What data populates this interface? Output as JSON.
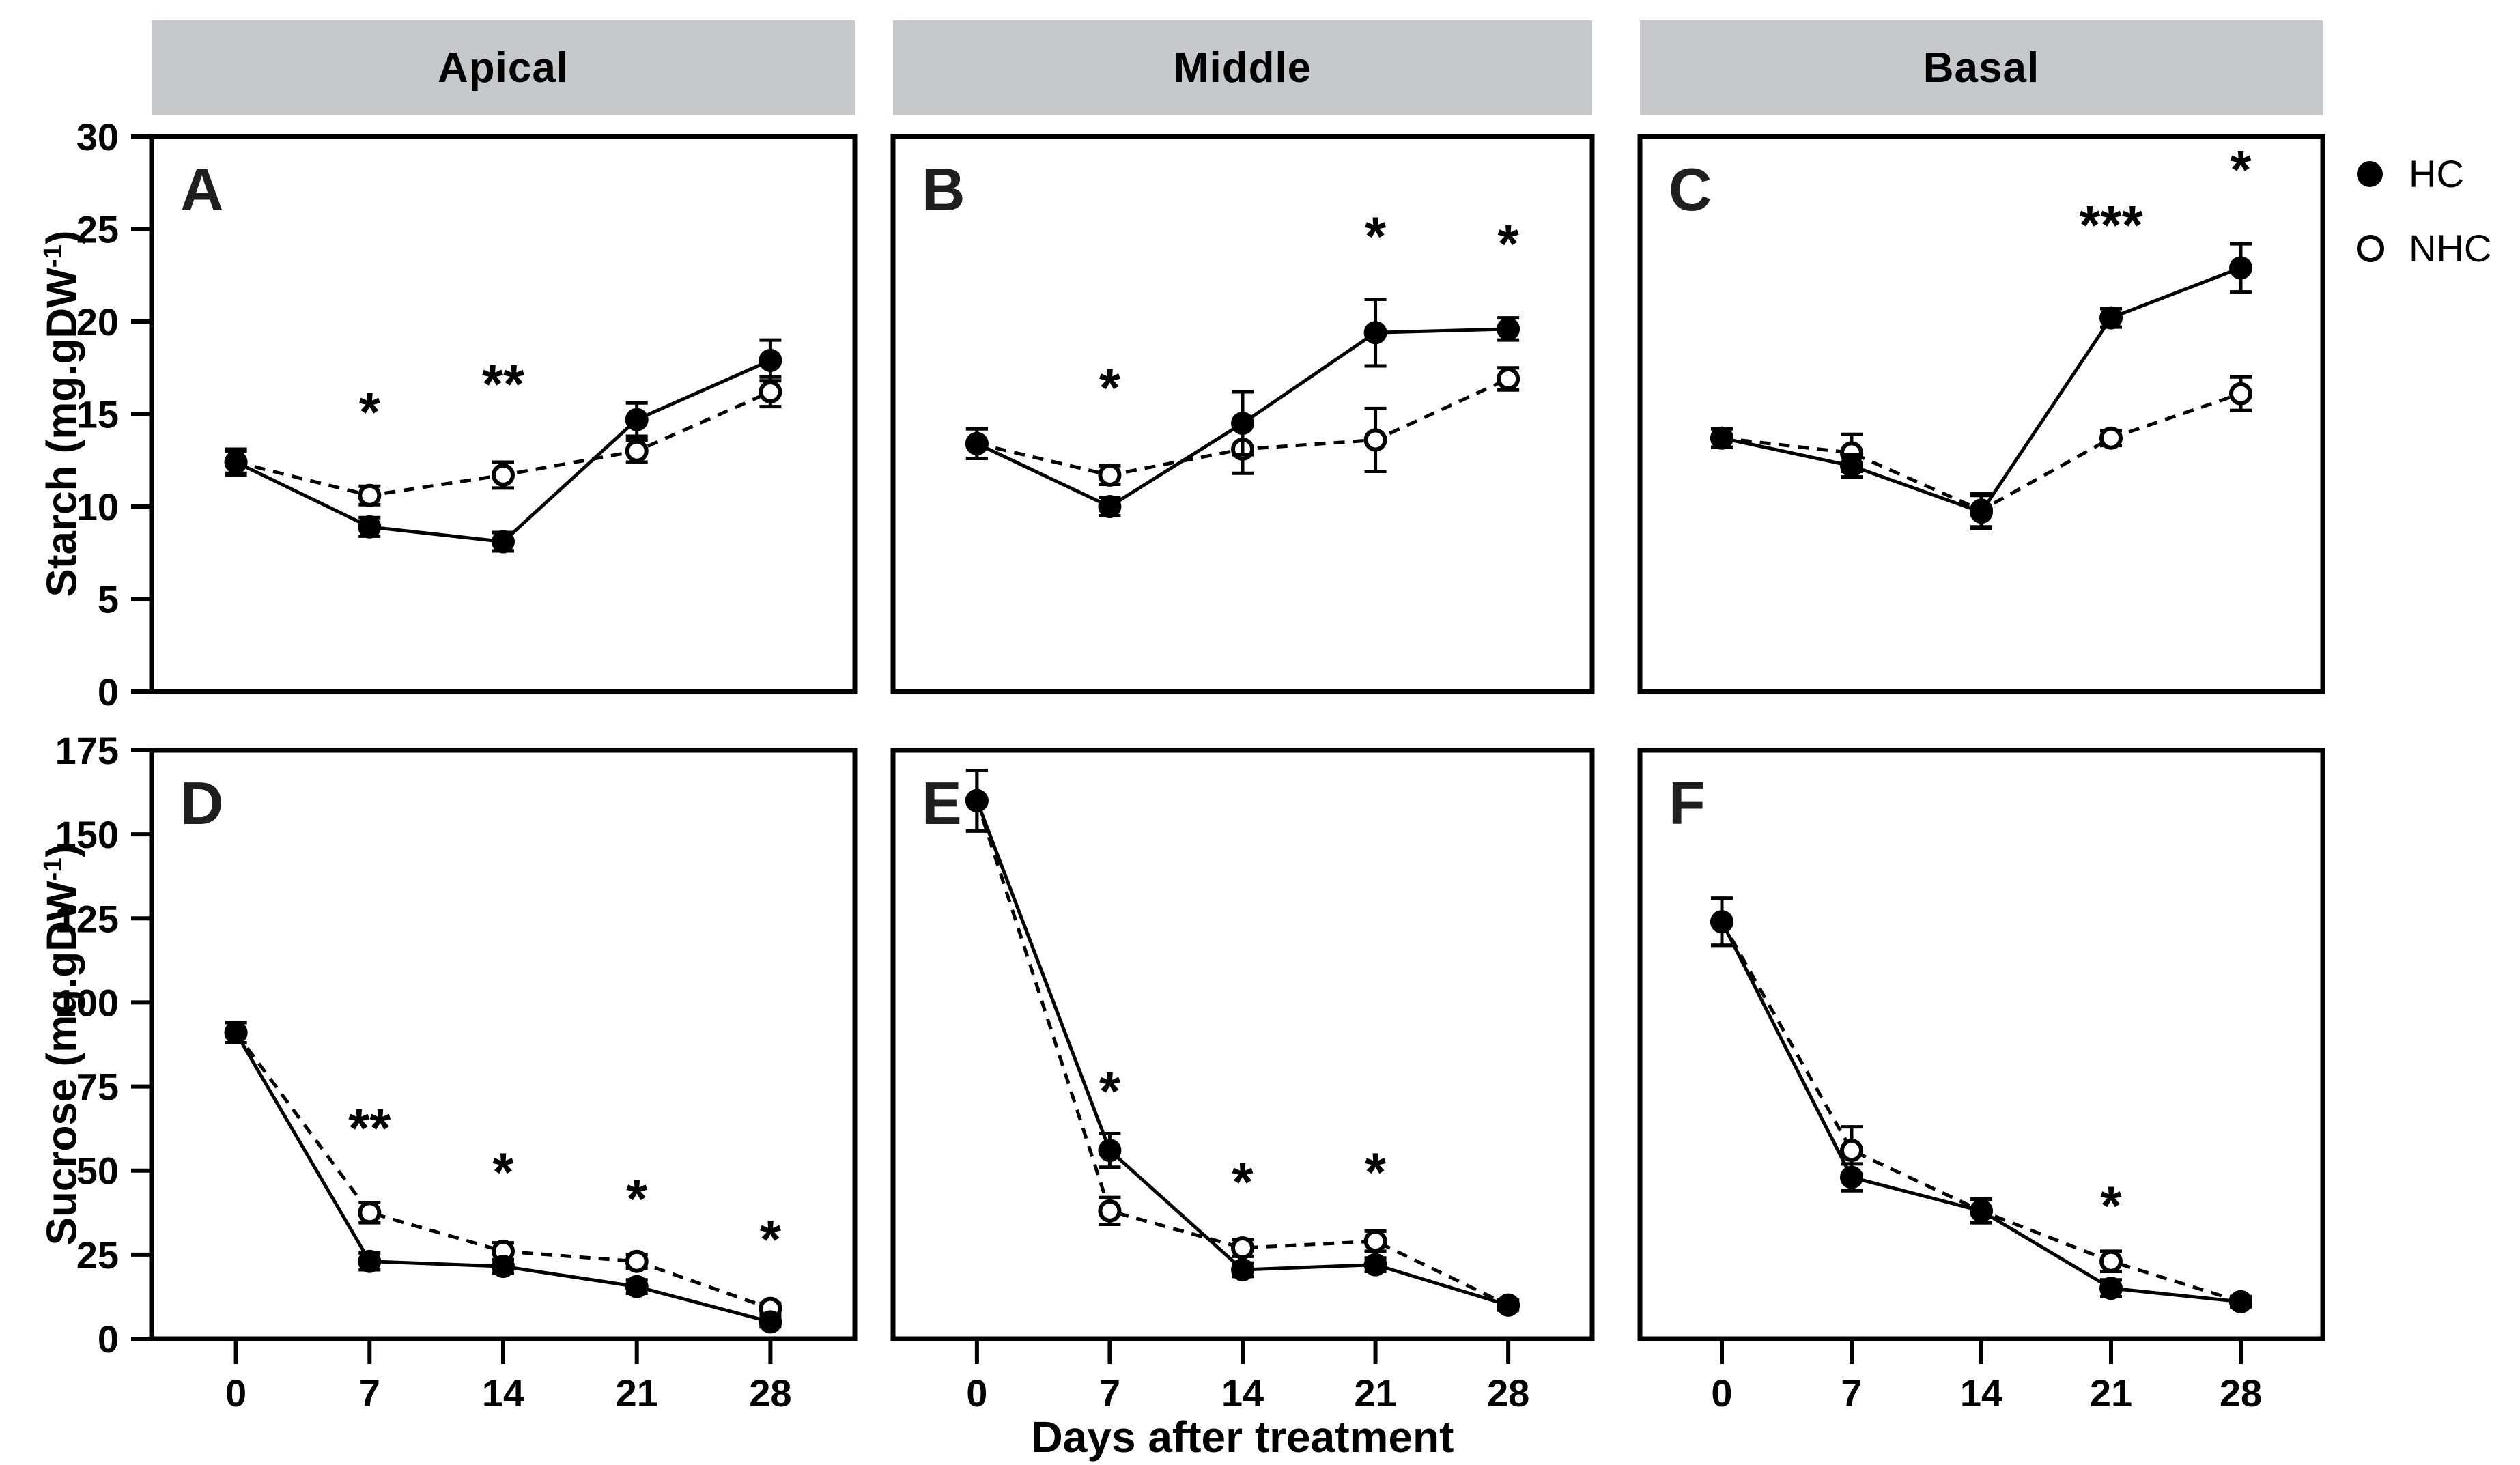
{
  "colors": {
    "background": "#ffffff",
    "ink": "#000000",
    "header_bg": "#c5c9cc",
    "panel_letter": "#1f1f1f"
  },
  "chart_data": {
    "type": "line",
    "xlabel": "Days after treatment",
    "x": [
      0,
      7,
      14,
      21,
      28
    ],
    "x_tick_labels": [
      "0",
      "7",
      "14",
      "21",
      "28"
    ],
    "column_headers": [
      "Apical",
      "Middle",
      "Basal"
    ],
    "rows": [
      {
        "ylabel_prefix": "Starch (mg.gDW",
        "ylabel_sup": "-1",
        "ylabel_suffix": ")",
        "ylim": [
          0,
          30
        ],
        "yticks": [
          0,
          5,
          10,
          15,
          20,
          25,
          30
        ]
      },
      {
        "ylabel_prefix": "Sucrose (mg.gDW",
        "ylabel_sup": "-1",
        "ylabel_suffix": ")",
        "ylim": [
          0,
          175
        ],
        "yticks": [
          0,
          25,
          50,
          75,
          100,
          125,
          150,
          175
        ]
      }
    ],
    "legend": [
      {
        "label": "HC",
        "marker": "filled-circle",
        "line": "solid"
      },
      {
        "label": "NHC",
        "marker": "open-circle",
        "line": "dashed"
      }
    ],
    "panels": [
      {
        "letter": "A",
        "column": "Apical",
        "measure": "Starch",
        "col": 0,
        "row": 0,
        "series": [
          {
            "name": "HC",
            "marker": "filled-circle",
            "line": "solid",
            "values": [
              12.4,
              8.9,
              8.1,
              14.7,
              17.9
            ],
            "errors": [
              0.7,
              0.5,
              0.5,
              0.9,
              1.1
            ]
          },
          {
            "name": "NHC",
            "marker": "open-circle",
            "line": "dashed",
            "values": [
              12.4,
              10.6,
              11.7,
              13.0,
              16.2
            ],
            "errors": [
              0.6,
              0.5,
              0.7,
              0.6,
              0.8
            ]
          }
        ],
        "significance": [
          {
            "day": 7,
            "label": "*",
            "y": 14.1
          },
          {
            "day": 14,
            "label": "**",
            "y": 15.6
          }
        ]
      },
      {
        "letter": "B",
        "column": "Middle",
        "measure": "Starch",
        "col": 1,
        "row": 0,
        "series": [
          {
            "name": "HC",
            "marker": "filled-circle",
            "line": "solid",
            "values": [
              13.4,
              10.0,
              14.5,
              19.4,
              19.6
            ],
            "errors": [
              0.8,
              0.5,
              1.7,
              1.8,
              0.6
            ]
          },
          {
            "name": "NHC",
            "marker": "open-circle",
            "line": "dashed",
            "values": [
              13.4,
              11.7,
              13.1,
              13.6,
              16.9
            ],
            "errors": [
              0.8,
              0.5,
              1.3,
              1.7,
              0.6
            ]
          }
        ],
        "significance": [
          {
            "day": 7,
            "label": "*",
            "y": 15.4
          },
          {
            "day": 21,
            "label": "*",
            "y": 23.6
          },
          {
            "day": 28,
            "label": "*",
            "y": 23.2
          }
        ]
      },
      {
        "letter": "C",
        "column": "Basal",
        "measure": "Starch",
        "col": 2,
        "row": 0,
        "series": [
          {
            "name": "HC",
            "marker": "filled-circle",
            "line": "solid",
            "values": [
              13.7,
              12.2,
              9.7,
              20.2,
              22.9
            ],
            "errors": [
              0.5,
              0.6,
              0.9,
              0.5,
              1.3
            ]
          },
          {
            "name": "NHC",
            "marker": "open-circle",
            "line": "dashed",
            "values": [
              13.7,
              12.9,
              9.8,
              13.7,
              16.1
            ],
            "errors": [
              0.5,
              1.0,
              0.9,
              0.4,
              0.9
            ]
          }
        ],
        "significance": [
          {
            "day": 21,
            "label": "***",
            "y": 24.2
          },
          {
            "day": 28,
            "label": "*",
            "y": 27.2
          }
        ]
      },
      {
        "letter": "D",
        "column": "Apical",
        "measure": "Sucrose",
        "col": 0,
        "row": 1,
        "series": [
          {
            "name": "HC",
            "marker": "filled-circle",
            "line": "solid",
            "values": [
              91,
              23,
              21.5,
              15.5,
              5
            ],
            "errors": [
              3,
              2.5,
              2,
              2,
              1.5
            ]
          },
          {
            "name": "NHC",
            "marker": "open-circle",
            "line": "dashed",
            "values": [
              91,
              37.5,
              26,
              23,
              9
            ],
            "errors": [
              3,
              3,
              2.5,
              2,
              1.5
            ]
          }
        ],
        "significance": [
          {
            "day": 7,
            "label": "**",
            "y": 57
          },
          {
            "day": 14,
            "label": "*",
            "y": 44
          },
          {
            "day": 21,
            "label": "*",
            "y": 36
          },
          {
            "day": 28,
            "label": "*",
            "y": 24
          }
        ]
      },
      {
        "letter": "E",
        "column": "Middle",
        "measure": "Sucrose",
        "col": 1,
        "row": 1,
        "series": [
          {
            "name": "HC",
            "marker": "filled-circle",
            "line": "solid",
            "values": [
              160,
              56,
              20.5,
              22,
              10
            ],
            "errors": [
              9,
              5,
              2,
              2,
              1.5
            ]
          },
          {
            "name": "NHC",
            "marker": "open-circle",
            "line": "dashed",
            "values": [
              160,
              38,
              27,
              29,
              10
            ],
            "errors": [
              9,
              4,
              2.5,
              3,
              1.5
            ]
          }
        ],
        "significance": [
          {
            "day": 7,
            "label": "*",
            "y": 68
          },
          {
            "day": 14,
            "label": "*",
            "y": 41
          },
          {
            "day": 21,
            "label": "*",
            "y": 44
          }
        ]
      },
      {
        "letter": "F",
        "column": "Basal",
        "measure": "Sucrose",
        "col": 2,
        "row": 1,
        "series": [
          {
            "name": "HC",
            "marker": "filled-circle",
            "line": "solid",
            "values": [
              124,
              48,
              38,
              15,
              11
            ],
            "errors": [
              7,
              4,
              3.5,
              2.5,
              1.5
            ]
          },
          {
            "name": "NHC",
            "marker": "open-circle",
            "line": "dashed",
            "values": [
              124,
              56,
              38,
              23,
              11
            ],
            "errors": [
              7,
              7,
              3.5,
              3,
              1.5
            ]
          }
        ],
        "significance": [
          {
            "day": 21,
            "label": "*",
            "y": 34
          }
        ]
      }
    ]
  }
}
